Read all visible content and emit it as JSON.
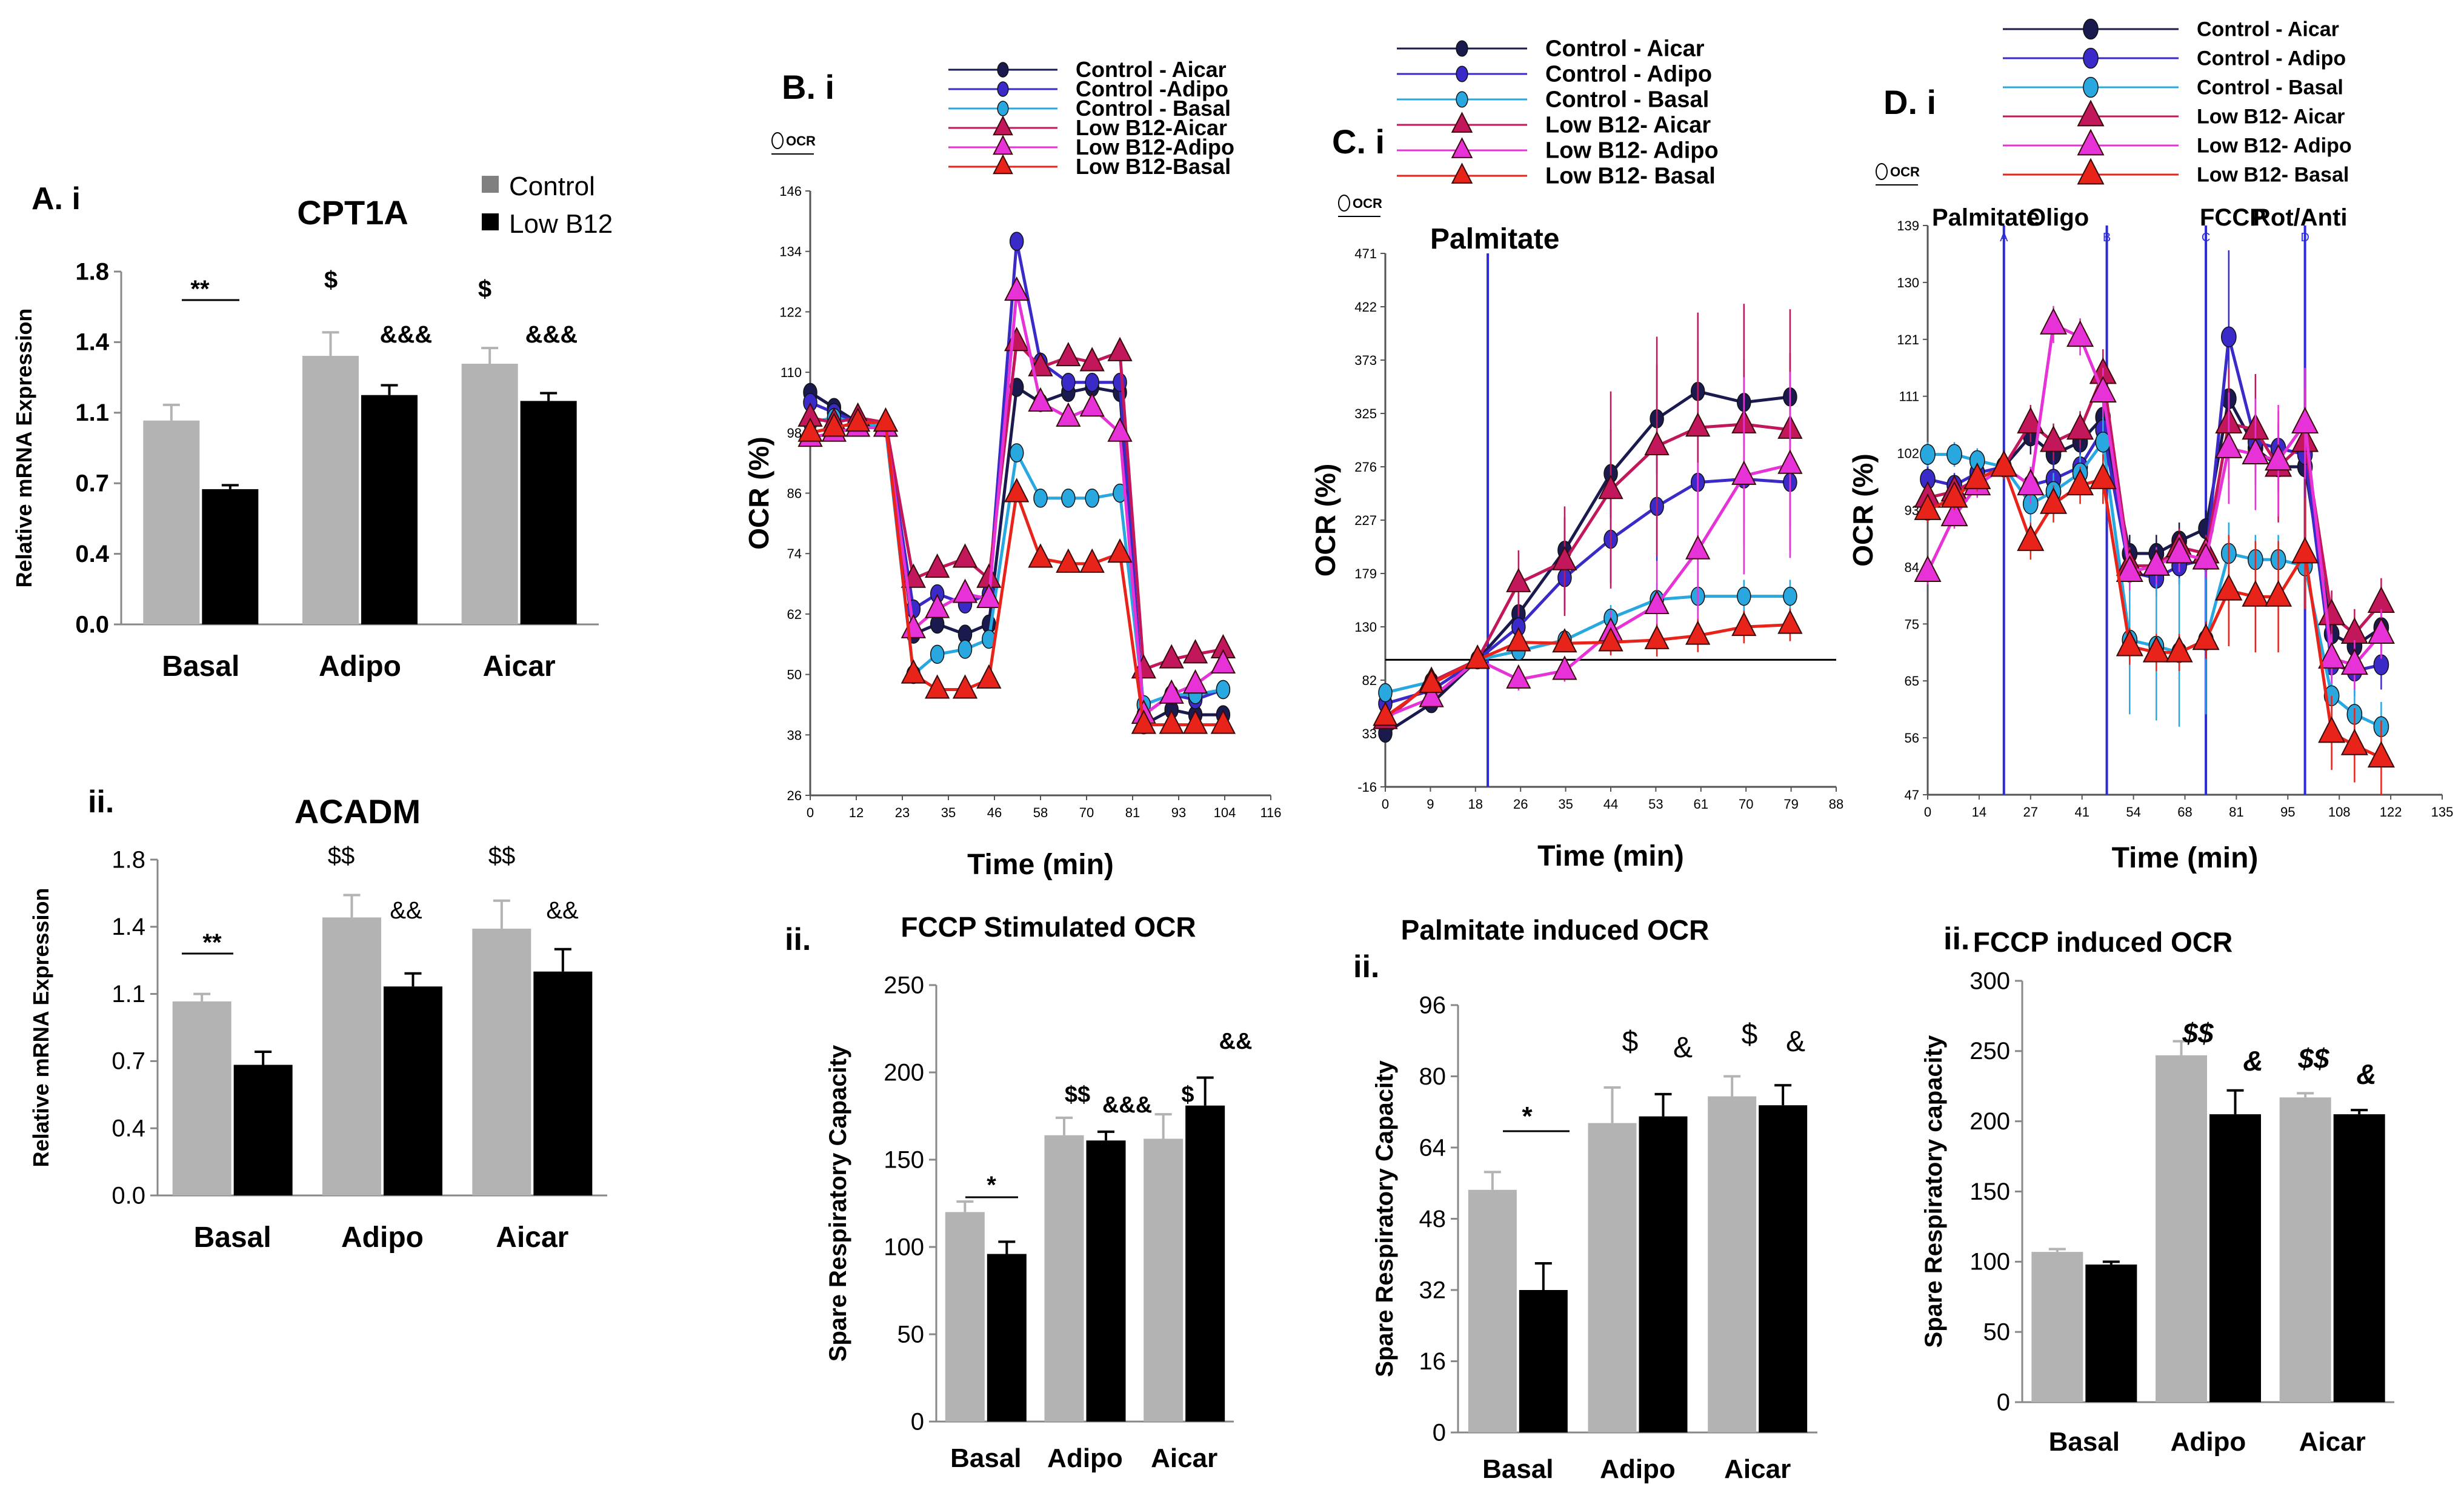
{
  "figure": {
    "series_colors": {
      "control_bar": "#b3b3b3",
      "lowb12_bar": "#000000",
      "control_aicar": "#1a1a4e",
      "control_adipo": "#3a2ac7",
      "control_basal": "#29a8e0",
      "lowb12_aicar": "#c2185b",
      "lowb12_adipo": "#e632d6",
      "lowb12_basal": "#e8231a",
      "marker_line": "#2b2bd9"
    }
  },
  "panels": {
    "a_i": {
      "label": "A. i"
    },
    "a_ii": {
      "label": "ii."
    },
    "b_i": {
      "label": "B. i",
      "legend_icon_text": "OCR"
    },
    "b_ii": {
      "label": "ii."
    },
    "c_i": {
      "label": "C. i",
      "legend_icon_text": "OCR"
    },
    "c_ii": {
      "label": "ii."
    },
    "d_i": {
      "label": "D. i",
      "legend_icon_text": "OCR"
    },
    "d_ii": {
      "label": "ii."
    }
  },
  "chart_data": [
    {
      "id": "a_i",
      "type": "bar",
      "title": "CPT1A",
      "categories": [
        "Basal",
        "Adipo",
        "Aicar"
      ],
      "series": [
        {
          "name": "Control",
          "values": [
            1.04,
            1.37,
            1.33
          ],
          "errors": [
            0.08,
            0.12,
            0.08
          ]
        },
        {
          "name": "Low B12",
          "values": [
            0.69,
            1.17,
            1.14
          ],
          "errors": [
            0.02,
            0.05,
            0.04
          ]
        }
      ],
      "legend": [
        "Control",
        "Low B12"
      ],
      "xlabel": "",
      "ylabel": "Relative mRNA Expression",
      "ylim": [
        0,
        1.8
      ],
      "ytick_labels": [
        "0.0",
        "0.4",
        "0.7",
        "1.1",
        "1.4",
        "1.8"
      ],
      "annotations": [
        "**",
        "$",
        "&&&",
        "$",
        "&&&"
      ]
    },
    {
      "id": "a_ii",
      "type": "bar",
      "title": "ACADM",
      "categories": [
        "Basal",
        "Adipo",
        "Aicar"
      ],
      "series": [
        {
          "name": "Control",
          "values": [
            1.04,
            1.49,
            1.43
          ],
          "errors": [
            0.04,
            0.12,
            0.15
          ]
        },
        {
          "name": "Low B12",
          "values": [
            0.7,
            1.12,
            1.2
          ],
          "errors": [
            0.07,
            0.07,
            0.12
          ]
        }
      ],
      "xlabel": "",
      "ylabel": "Relative mRNA Expression",
      "ylim": [
        0,
        1.8
      ],
      "ytick_labels": [
        "0.0",
        "0.4",
        "0.7",
        "1.1",
        "1.4",
        "1.8"
      ],
      "annotations": [
        "**",
        "$$",
        "&&",
        "$$",
        "&&"
      ]
    },
    {
      "id": "b_i",
      "type": "line",
      "title": "",
      "xlabel": "Time (min)",
      "ylabel": "OCR (%)",
      "xlim": [
        0,
        116
      ],
      "ylim": [
        26,
        146
      ],
      "xtick_labels": [
        "0",
        "12",
        "23",
        "35",
        "46",
        "58",
        "70",
        "81",
        "93",
        "104",
        "116"
      ],
      "ytick_labels": [
        "26",
        "38",
        "50",
        "62",
        "74",
        "86",
        "98",
        "110",
        "122",
        "134",
        "146"
      ],
      "x": [
        0,
        6,
        12,
        19,
        26,
        32,
        39,
        45,
        52,
        58,
        65,
        71,
        78,
        84,
        91,
        97,
        104
      ],
      "series": [
        {
          "name": "Control - Aicar",
          "values": [
            106,
            103,
            100,
            99,
            58,
            60,
            58,
            60,
            107,
            104,
            106,
            107,
            106,
            40,
            43,
            42,
            42
          ]
        },
        {
          "name": "Control -Adipo",
          "values": [
            104,
            102,
            100,
            99,
            63,
            66,
            64,
            66,
            136,
            112,
            108,
            108,
            108,
            42,
            46,
            45,
            47
          ]
        },
        {
          "name": "Control - Basal",
          "values": [
            100,
            101,
            100,
            99,
            50,
            54,
            55,
            57,
            94,
            85,
            85,
            85,
            86,
            44,
            46,
            46,
            47
          ]
        },
        {
          "name": "Low B12-Aicar",
          "values": [
            101,
            100,
            101,
            100,
            69,
            71,
            73,
            69,
            116,
            111,
            113,
            112,
            114,
            51,
            53,
            54,
            55
          ]
        },
        {
          "name": "Low B12-Adipo",
          "values": [
            97,
            98,
            99,
            99,
            59,
            63,
            66,
            65,
            126,
            104,
            101,
            103,
            98,
            42,
            46,
            48,
            52
          ]
        },
        {
          "name": "Low B12-Basal",
          "values": [
            98,
            99,
            100,
            100,
            50,
            47,
            47,
            49,
            86,
            73,
            72,
            72,
            74,
            40,
            40,
            40,
            40
          ]
        }
      ]
    },
    {
      "id": "b_ii",
      "type": "bar",
      "title": "FCCP Stimulated OCR",
      "categories": [
        "Basal",
        "Adipo",
        "Aicar"
      ],
      "series": [
        {
          "name": "Control",
          "values": [
            120,
            164,
            162
          ],
          "errors": [
            6,
            10,
            14
          ]
        },
        {
          "name": "Low B12",
          "values": [
            96,
            161,
            181
          ],
          "errors": [
            7,
            5,
            16
          ]
        }
      ],
      "xlabel": "",
      "ylabel": "Spare Respiratory Capacity",
      "ylim": [
        0,
        250
      ],
      "ytick_labels": [
        "0",
        "50",
        "100",
        "150",
        "200",
        "250"
      ],
      "annotations": [
        "*",
        "$$",
        "&&&",
        "$",
        "&&"
      ]
    },
    {
      "id": "c_i",
      "type": "line",
      "title": "",
      "xlabel": "Time (min)",
      "ylabel": "OCR (%)",
      "xlim": [
        0,
        88
      ],
      "ylim": [
        -16,
        471
      ],
      "xtick_labels": [
        "0",
        "9",
        "18",
        "26",
        "35",
        "44",
        "53",
        "61",
        "70",
        "79",
        "88"
      ],
      "ytick_labels": [
        "-16",
        "33",
        "82",
        "130",
        "179",
        "227",
        "276",
        "325",
        "373",
        "422",
        "471"
      ],
      "event_labels": [
        "Palmitate"
      ],
      "x": [
        0,
        9,
        18,
        26,
        35,
        44,
        53,
        61,
        70,
        79
      ],
      "series": [
        {
          "name": "Control - Aicar",
          "values": [
            33,
            60,
            100,
            142,
            200,
            270,
            320,
            345,
            335,
            340
          ]
        },
        {
          "name": "Control - Adipo",
          "values": [
            60,
            72,
            100,
            130,
            175,
            210,
            240,
            262,
            265,
            262
          ]
        },
        {
          "name": "Control - Basal",
          "values": [
            70,
            80,
            100,
            108,
            118,
            138,
            155,
            158,
            158,
            158
          ]
        },
        {
          "name": "Low B12- Aicar",
          "values": [
            45,
            80,
            100,
            170,
            190,
            255,
            295,
            312,
            315,
            310
          ]
        },
        {
          "name": "Low B12- Adipo",
          "values": [
            48,
            65,
            100,
            82,
            90,
            125,
            150,
            200,
            268,
            278
          ]
        },
        {
          "name": "Low B12- Basal",
          "values": [
            48,
            78,
            100,
            116,
            115,
            116,
            118,
            122,
            130,
            132
          ]
        }
      ]
    },
    {
      "id": "c_ii",
      "type": "bar",
      "title": "Palmitate induced OCR",
      "categories": [
        "Basal",
        "Adipo",
        "Aicar"
      ],
      "series": [
        {
          "name": "Control",
          "values": [
            54.5,
            69.5,
            75.5
          ],
          "errors": [
            4,
            8,
            4.5
          ]
        },
        {
          "name": "Low B12",
          "values": [
            32,
            71,
            73.5
          ],
          "errors": [
            6,
            5,
            4.5
          ]
        }
      ],
      "xlabel": "",
      "ylabel": "Spare Respiratory Capacity",
      "ylim": [
        0,
        96
      ],
      "ytick_labels": [
        "0",
        "16",
        "32",
        "48",
        "64",
        "80",
        "96"
      ],
      "annotations": [
        "*",
        "$",
        "&",
        "$",
        "&"
      ]
    },
    {
      "id": "d_i",
      "type": "line",
      "title": "",
      "xlabel": "Time (min)",
      "ylabel": "OCR (%)",
      "xlim": [
        0,
        135
      ],
      "ylim": [
        47,
        139
      ],
      "xtick_labels": [
        "0",
        "14",
        "27",
        "41",
        "54",
        "68",
        "81",
        "95",
        "108",
        "122",
        "135"
      ],
      "ytick_labels": [
        "47",
        "56",
        "65",
        "75",
        "84",
        "93",
        "102",
        "111",
        "121",
        "130",
        "139"
      ],
      "event_labels": [
        "Palmitate",
        "Oligo",
        "FCCP",
        "Rot/Anti"
      ],
      "event_markers": [
        "A",
        "B",
        "C",
        "D"
      ],
      "x": [
        0,
        7,
        13,
        20,
        27,
        33,
        40,
        46,
        53,
        60,
        66,
        73,
        79,
        86,
        92,
        99,
        106,
        112,
        119
      ],
      "series": [
        {
          "name": "Control - Aicar",
          "values": [
            93,
            95,
            98,
            100,
            105,
            102,
            104,
            108,
            86,
            86,
            88,
            90,
            111,
            103,
            100,
            100,
            73,
            71,
            74
          ]
        },
        {
          "name": "Control - Adipo",
          "values": [
            98,
            97,
            99,
            100,
            97,
            98,
            100,
            106,
            83,
            82,
            84,
            85,
            121,
            104,
            103,
            102,
            68,
            67,
            68
          ]
        },
        {
          "name": "Control - Basal",
          "values": [
            102,
            102,
            101,
            100,
            94,
            96,
            99,
            104,
            72,
            71,
            70,
            72,
            86,
            85,
            85,
            84,
            63,
            60,
            58
          ]
        },
        {
          "name": "Low B12- Aicar",
          "values": [
            95,
            96,
            98,
            100,
            107,
            104,
            106,
            115,
            84,
            84,
            87,
            86,
            107,
            106,
            100,
            104,
            76,
            73,
            78
          ]
        },
        {
          "name": "Low B12- Adipo",
          "values": [
            83,
            92,
            97,
            100,
            97,
            123,
            121,
            112,
            83,
            84,
            86,
            85,
            103,
            102,
            101,
            107,
            69,
            68,
            73
          ]
        },
        {
          "name": "Low B12- Basal",
          "values": [
            93,
            95,
            98,
            100,
            88,
            94,
            97,
            98,
            71,
            70,
            70,
            72,
            80,
            79,
            79,
            86,
            57,
            55,
            53
          ]
        }
      ]
    },
    {
      "id": "d_ii",
      "type": "bar",
      "title": "FCCP induced OCR",
      "categories": [
        "Basal",
        "Adipo",
        "Aicar"
      ],
      "series": [
        {
          "name": "Control",
          "values": [
            107,
            247,
            217
          ],
          "errors": [
            2,
            10,
            3
          ]
        },
        {
          "name": "Low B12",
          "values": [
            98,
            205,
            205
          ],
          "errors": [
            2,
            17,
            3
          ]
        }
      ],
      "xlabel": "",
      "ylabel": "Spare Respiratory capacity",
      "ylim": [
        0,
        300
      ],
      "ytick_labels": [
        "0",
        "50",
        "100",
        "150",
        "200",
        "250",
        "300"
      ],
      "annotations": [
        "$$",
        "&",
        "$$",
        "&"
      ]
    }
  ]
}
